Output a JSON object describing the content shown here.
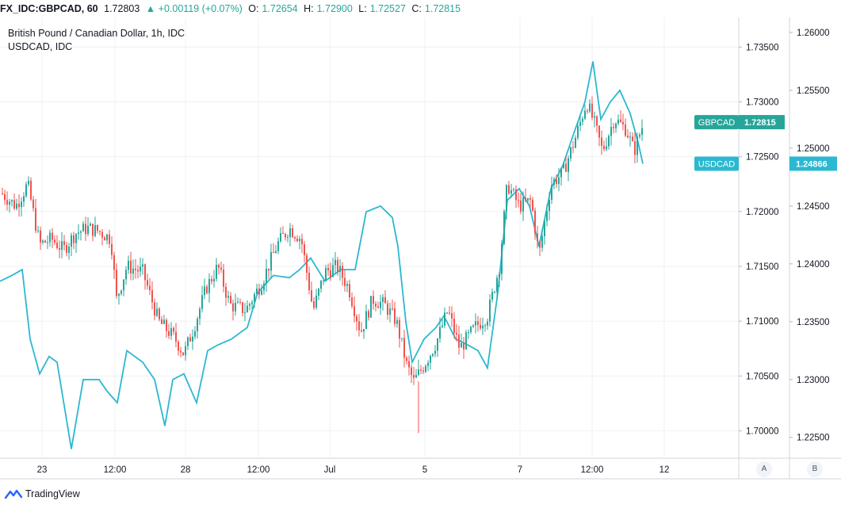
{
  "header": {
    "symbol": "FX_IDC:GBPCAD, 60",
    "last": "1.72803",
    "change": "▲ +0.00119 (+0.07%)",
    "o_label": "O:",
    "o_value": "1.72654",
    "h_label": "H:",
    "h_value": "1.72900",
    "l_label": "L:",
    "l_value": "1.72527",
    "c_label": "C:",
    "c_value": "1.72815"
  },
  "legend": {
    "main": "British Pound / Canadian Dollar, 1h, IDC",
    "overlay": "USDCAD, IDC"
  },
  "footer": {
    "brand": "TradingView",
    "scale_a": "A",
    "scale_b": "B"
  },
  "colors": {
    "up": "#26a69a",
    "down": "#ef5350",
    "overlay": "#2bb8d1",
    "grid": "#eef0f3"
  },
  "chart_data": {
    "type": "line",
    "x_tick_labels": [
      "23",
      "12:00",
      "28",
      "12:00",
      "Jul",
      "5",
      "7",
      "12:00",
      "12"
    ],
    "y_left_ticks": [
      "1.73500",
      "1.73000",
      "1.72500",
      "1.72000",
      "1.71500",
      "1.71000",
      "1.70500",
      "1.70000"
    ],
    "y_right_ticks": [
      "1.26000",
      "1.25500",
      "1.25000",
      "1.24500",
      "1.24000",
      "1.23500",
      "1.23000",
      "1.22500"
    ],
    "ylim_left": [
      1.6975,
      1.7377
    ],
    "ylim_right": [
      1.2232,
      1.2613
    ],
    "series": [
      {
        "name": "GBPCAD",
        "style": "candlestick",
        "close_path_key": [
          [
            0,
            1.7218
          ],
          [
            20,
            1.7205
          ],
          [
            35,
            1.7225
          ],
          [
            50,
            1.717
          ],
          [
            65,
            1.7175
          ],
          [
            80,
            1.7165
          ],
          [
            95,
            1.718
          ],
          [
            110,
            1.7185
          ],
          [
            125,
            1.7182
          ],
          [
            140,
            1.7175
          ],
          [
            147,
            1.712
          ],
          [
            160,
            1.715
          ],
          [
            180,
            1.7145
          ],
          [
            200,
            1.71
          ],
          [
            220,
            1.7085
          ],
          [
            232,
            1.707
          ],
          [
            245,
            1.7095
          ],
          [
            260,
            1.713
          ],
          [
            275,
            1.715
          ],
          [
            290,
            1.7115
          ],
          [
            310,
            1.711
          ],
          [
            330,
            1.7135
          ],
          [
            350,
            1.717
          ],
          [
            365,
            1.7185
          ],
          [
            380,
            1.7175
          ],
          [
            395,
            1.711
          ],
          [
            410,
            1.7145
          ],
          [
            425,
            1.715
          ],
          [
            440,
            1.713
          ],
          [
            455,
            1.709
          ],
          [
            470,
            1.712
          ],
          [
            485,
            1.7115
          ],
          [
            500,
            1.71
          ],
          [
            513,
            1.706
          ],
          [
            522,
            1.7045
          ],
          [
            535,
            1.706
          ],
          [
            550,
            1.708
          ],
          [
            565,
            1.711
          ],
          [
            580,
            1.7075
          ],
          [
            600,
            1.7095
          ],
          [
            615,
            1.7105
          ],
          [
            630,
            1.715
          ],
          [
            640,
            1.7225
          ],
          [
            655,
            1.7205
          ],
          [
            670,
            1.721
          ],
          [
            680,
            1.716
          ],
          [
            695,
            1.7225
          ],
          [
            710,
            1.7235
          ],
          [
            725,
            1.7265
          ],
          [
            740,
            1.73
          ],
          [
            750,
            1.728
          ],
          [
            760,
            1.7255
          ],
          [
            775,
            1.7285
          ],
          [
            790,
            1.7275
          ],
          [
            800,
            1.7255
          ],
          [
            812,
            1.72815
          ]
        ],
        "last_label": "GBPCAD",
        "last_value": "1.72815"
      },
      {
        "name": "USDCAD",
        "style": "line",
        "values": [
          [
            0,
            1.2385
          ],
          [
            15,
            1.239
          ],
          [
            28,
            1.2395
          ],
          [
            38,
            1.2335
          ],
          [
            50,
            1.2305
          ],
          [
            62,
            1.232
          ],
          [
            72,
            1.2315
          ],
          [
            90,
            1.224
          ],
          [
            105,
            1.23
          ],
          [
            125,
            1.23
          ],
          [
            135,
            1.229
          ],
          [
            148,
            1.228
          ],
          [
            160,
            1.2325
          ],
          [
            180,
            1.2315
          ],
          [
            195,
            1.23
          ],
          [
            208,
            1.226
          ],
          [
            218,
            1.23
          ],
          [
            232,
            1.2305
          ],
          [
            248,
            1.228
          ],
          [
            262,
            1.2325
          ],
          [
            275,
            1.233
          ],
          [
            292,
            1.2335
          ],
          [
            312,
            1.2345
          ],
          [
            325,
            1.2375
          ],
          [
            345,
            1.239
          ],
          [
            365,
            1.2388
          ],
          [
            378,
            1.2395
          ],
          [
            392,
            1.2405
          ],
          [
            410,
            1.2385
          ],
          [
            430,
            1.2395
          ],
          [
            448,
            1.2395
          ],
          [
            462,
            1.2445
          ],
          [
            480,
            1.245
          ],
          [
            495,
            1.244
          ],
          [
            502,
            1.2415
          ],
          [
            512,
            1.235
          ],
          [
            520,
            1.2315
          ],
          [
            535,
            1.2335
          ],
          [
            550,
            1.2345
          ],
          [
            560,
            1.2355
          ],
          [
            575,
            1.2335
          ],
          [
            590,
            1.233
          ],
          [
            603,
            1.2325
          ],
          [
            615,
            1.231
          ],
          [
            628,
            1.2375
          ],
          [
            640,
            1.2455
          ],
          [
            655,
            1.2465
          ],
          [
            668,
            1.245
          ],
          [
            680,
            1.2415
          ],
          [
            695,
            1.2465
          ],
          [
            710,
            1.2485
          ],
          [
            725,
            1.2515
          ],
          [
            738,
            1.254
          ],
          [
            748,
            1.2575
          ],
          [
            758,
            1.2525
          ],
          [
            770,
            1.254
          ],
          [
            782,
            1.255
          ],
          [
            795,
            1.253
          ],
          [
            805,
            1.2505
          ],
          [
            811,
            1.24866
          ]
        ],
        "last_label": "USDCAD",
        "last_value": "1.24866"
      }
    ]
  }
}
